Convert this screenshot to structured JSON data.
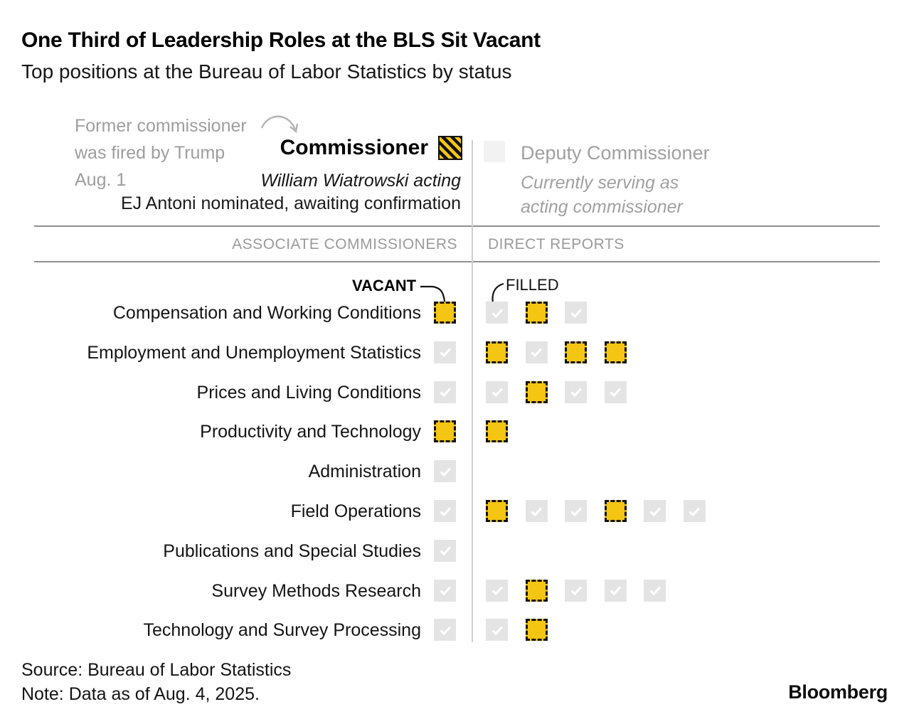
{
  "header": {
    "title": "One Third of Leadership Roles at the BLS Sit Vacant",
    "subtitle": "Top positions at the Bureau of Labor Statistics by status"
  },
  "commissioner": {
    "annotation_lines": [
      "Former commissioner",
      "was fired by Trump",
      "Aug. 1"
    ],
    "title": "Commissioner",
    "acting": "William Wiatrowski acting",
    "nominee": "EJ Antoni nominated, awaiting confirmation",
    "icon": "vacant-hatched-square-icon"
  },
  "deputy": {
    "title": "Deputy Commissioner",
    "note_lines": [
      "Currently serving as",
      "acting commissioner"
    ],
    "icon": "filled-square-icon"
  },
  "legend": {
    "vacant_label": "VACANT",
    "filled_label": "FILLED"
  },
  "chart_data": {
    "type": "table",
    "title": "One Third of Leadership Roles at the BLS Sit Vacant",
    "subtitle": "Top positions at the Bureau of Labor Statistics by status",
    "columns": [
      "ASSOCIATE COMMISSIONERS",
      "DIRECT REPORTS"
    ],
    "legend": [
      "VACANT",
      "FILLED"
    ],
    "rows": [
      {
        "label": "Compensation and Working Conditions",
        "associate": "vacant",
        "direct_reports": [
          "filled",
          "vacant",
          "filled"
        ]
      },
      {
        "label": "Employment and Unemployment Statistics",
        "associate": "filled",
        "direct_reports": [
          "vacant",
          "filled",
          "vacant",
          "vacant"
        ]
      },
      {
        "label": "Prices and Living Conditions",
        "associate": "filled",
        "direct_reports": [
          "filled",
          "vacant",
          "filled",
          "filled"
        ]
      },
      {
        "label": "Productivity and Technology",
        "associate": "vacant",
        "direct_reports": [
          "vacant"
        ]
      },
      {
        "label": "Administration",
        "associate": "filled",
        "direct_reports": []
      },
      {
        "label": "Field Operations",
        "associate": "filled",
        "direct_reports": [
          "vacant",
          "filled",
          "filled",
          "vacant",
          "filled",
          "filled"
        ]
      },
      {
        "label": "Publications and Special Studies",
        "associate": "filled",
        "direct_reports": []
      },
      {
        "label": "Survey Methods Research",
        "associate": "filled",
        "direct_reports": [
          "filled",
          "vacant",
          "filled",
          "filled",
          "filled"
        ]
      },
      {
        "label": "Technology and Survey Processing",
        "associate": "filled",
        "direct_reports": [
          "filled",
          "vacant"
        ]
      }
    ]
  },
  "footer": {
    "source": "Source: Bureau of Labor Statistics",
    "note": "Note: Data as of Aug. 4, 2025.",
    "logo": "Bloomberg"
  },
  "colors": {
    "vacant_yellow": "#F4C513",
    "filled_gray": "#E4E4E4",
    "check_white": "#FFFFFF",
    "muted_text": "#9E9E9E",
    "rule_gray": "#8F8F8F"
  }
}
